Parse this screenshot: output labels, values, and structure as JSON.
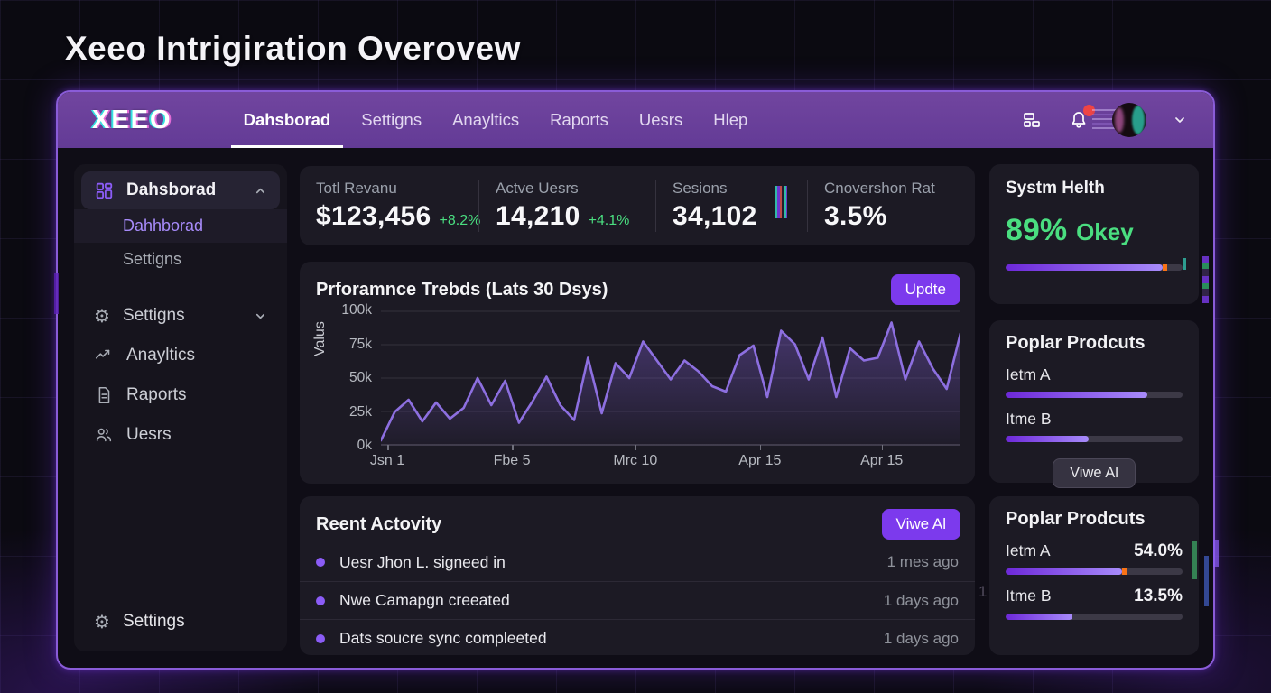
{
  "page_title": "Xeeo Intrigiration Overovew",
  "navbar": {
    "logo": "XEEO",
    "items": [
      {
        "label": "Dahsborad",
        "active": true
      },
      {
        "label": "Settigns",
        "active": false
      },
      {
        "label": "Anayltics",
        "active": false
      },
      {
        "label": "Raports",
        "active": false
      },
      {
        "label": "Uesrs",
        "active": false
      },
      {
        "label": "Hlep",
        "active": false
      }
    ],
    "notification_count_visible": true
  },
  "icons": {
    "apps_icon": "dashboard-grid",
    "notification_icon": "bell",
    "notification_badge_color": "#ef4444",
    "avatar": "glitched-profile-photo",
    "chevron_down": "⌄",
    "chevron_up": "⌃",
    "gear": "⚙",
    "analytics": "trend-line",
    "reports": "document",
    "users": "two-people"
  },
  "sidebar": {
    "group": {
      "label": "Dahsborad",
      "expanded": true,
      "children": [
        {
          "label": "Dahhborad",
          "active": true
        },
        {
          "label": "Settigns",
          "active": false
        }
      ]
    },
    "items": [
      {
        "label": "Settigns"
      },
      {
        "label": "Anayltics"
      },
      {
        "label": "Raports"
      },
      {
        "label": "Uesrs"
      }
    ],
    "footer": {
      "label": "Settings"
    }
  },
  "stats": [
    {
      "label": "Totl Revanu",
      "value": "$123,456",
      "delta": "+8.2%"
    },
    {
      "label": "Actve Uesrs",
      "value": "14,210",
      "delta": "+4.1%"
    },
    {
      "label": "Sesions",
      "value": "34,102",
      "delta": ""
    },
    {
      "label": "Cnovershon Rat",
      "value": "3.5%",
      "delta": ""
    }
  ],
  "chart": {
    "title": "Prforamnce Trebds (Lats 30 Dsys)",
    "update_button": "Updte",
    "ylabel": "Valus"
  },
  "chart_data": {
    "type": "line",
    "title": "Prforamnce Trebds (Lats 30 Dsys)",
    "xlabel": "",
    "ylabel": "Valus",
    "ylim": [
      0,
      100000
    ],
    "grid": true,
    "legend": false,
    "line_color": "#8d6fe0",
    "fill": "purple-gradient-area",
    "y_ticks": [
      "100k",
      "75k",
      "50k",
      "25k",
      "0k"
    ],
    "x_ticks": [
      "Jsn 1",
      "Fbe 5",
      "Mrc 10",
      "Apr 15",
      "Apr 15"
    ],
    "x_tick_positions_pct": [
      1.1,
      22.6,
      43.9,
      65.4,
      86.4
    ],
    "values": [
      4000,
      25000,
      34000,
      18000,
      32000,
      20000,
      28000,
      50000,
      30000,
      48000,
      17000,
      33000,
      51000,
      30000,
      19000,
      65000,
      24000,
      61000,
      50000,
      77000,
      63000,
      49000,
      63000,
      55000,
      44000,
      40000,
      67000,
      74000,
      36000,
      85000,
      75000,
      49000,
      80000,
      36000,
      72000,
      63000,
      65000,
      91000,
      49000,
      77000,
      57000,
      42000,
      83000
    ]
  },
  "activity": {
    "title": "Reent Actovity",
    "view_button": "Viwe Al",
    "items": [
      {
        "text": "Uesr Jhon L. signeed in",
        "time": "1 mes ago"
      },
      {
        "text": "Nwe Camapgn creeated",
        "time": "1 days ago"
      },
      {
        "text": "Dats soucre sync compleeted",
        "time": "1 days ago"
      }
    ],
    "ghost_text": "1"
  },
  "system_health": {
    "title": "Systm Helth",
    "percent": "89%",
    "status": "Okey",
    "progress": 89,
    "status_color": "#4ade80"
  },
  "products_top": {
    "title": "Poplar Prodcuts",
    "view_button": "Viwe Al",
    "items": [
      {
        "label": "Ietm A",
        "progress": 80
      },
      {
        "label": "Itme B",
        "progress": 47
      }
    ]
  },
  "products_bottom": {
    "title": "Poplar Prodcuts",
    "items": [
      {
        "label": "Ietm A",
        "value": "54.0%",
        "progress": 66
      },
      {
        "label": "Itme B",
        "value": "13.5%",
        "progress": 38
      }
    ]
  },
  "colors": {
    "accent": "#7c3aed",
    "nav_purple": "#6a3f9c",
    "positive_green": "#4ade80",
    "chart_line": "#8d6fe0",
    "window_border": "#8a5cd8",
    "badge_red": "#ef4444"
  }
}
